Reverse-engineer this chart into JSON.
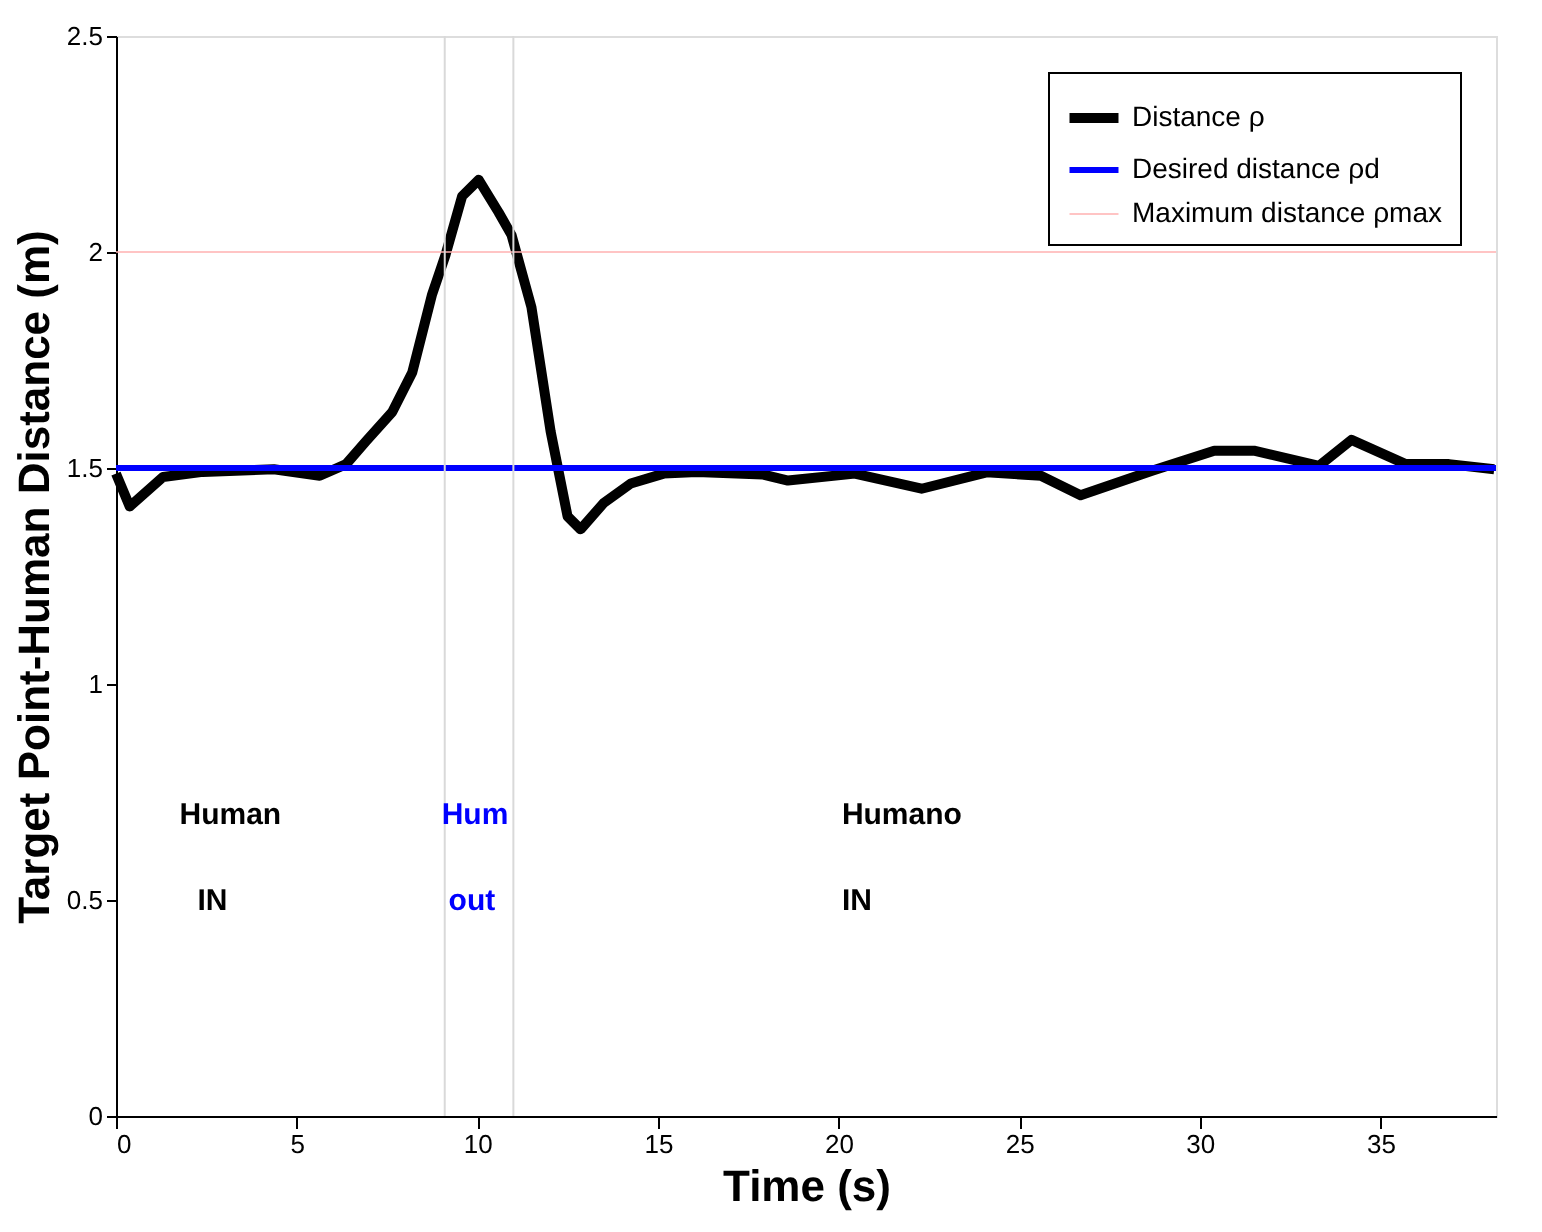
{
  "chart_data": {
    "type": "line",
    "xlabel": "Time (s)",
    "ylabel": "Target Point-Human Distance (m)",
    "xlim": [
      0,
      38.2
    ],
    "ylim": [
      0,
      2.5
    ],
    "xticks": [
      0,
      5,
      10,
      15,
      20,
      25,
      30,
      35
    ],
    "yticks": [
      0,
      0.5,
      1,
      1.5,
      2,
      2.5
    ],
    "legend": "top right",
    "grid": false,
    "marker": "none",
    "line_style": "solid",
    "series": [
      {
        "name": "Distance ρ",
        "color": "#000000",
        "x": [
          0,
          0.38,
          1.3,
          2.4,
          4.37,
          5.64,
          6.37,
          6.92,
          7.65,
          8.2,
          8.75,
          9.12,
          9.58,
          10.04,
          10.59,
          10.95,
          11.5,
          12.03,
          12.5,
          12.86,
          13.5,
          14.25,
          15.16,
          16.08,
          17.9,
          18.6,
          20.45,
          22.3,
          24.1,
          25.6,
          26.7,
          28.7,
          30.4,
          31.5,
          33.3,
          34.2,
          35.7,
          36.9,
          38.15
        ],
        "values": [
          1.487,
          1.411,
          1.479,
          1.491,
          1.497,
          1.482,
          1.509,
          1.562,
          1.63,
          1.721,
          1.902,
          1.993,
          2.129,
          2.167,
          2.092,
          2.039,
          1.872,
          1.585,
          1.388,
          1.358,
          1.419,
          1.464,
          1.487,
          1.491,
          1.485,
          1.471,
          1.487,
          1.452,
          1.49,
          1.482,
          1.437,
          1.494,
          1.54,
          1.54,
          1.505,
          1.565,
          1.509,
          1.509,
          1.497
        ]
      },
      {
        "name": "Desired distance ρd",
        "color": "#0000ff",
        "x": [
          0,
          38.2
        ],
        "values": [
          1.5,
          1.5
        ]
      },
      {
        "name": "Maximum distance ρmax",
        "color": "#ffb0b0",
        "x": [
          0,
          38.2
        ],
        "values": [
          2,
          2
        ]
      }
    ],
    "ref_lines": [
      {
        "axis": "x",
        "value": 9.1,
        "color": "#d9d9d9"
      },
      {
        "axis": "x",
        "value": 11,
        "color": "#d9d9d9"
      }
    ],
    "annotations": [
      "Human",
      "IN",
      "Hum",
      "out",
      "Humano",
      "IN"
    ]
  }
}
